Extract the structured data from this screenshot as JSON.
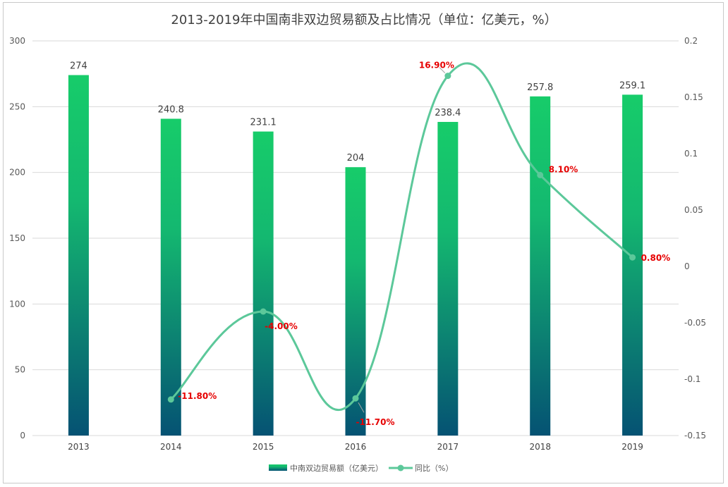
{
  "chart_data": {
    "type": "bar",
    "title": "2013-2019年中国南非双边贸易额及占比情况（单位：亿美元，%）",
    "categories": [
      "2013",
      "2014",
      "2015",
      "2016",
      "2017",
      "2018",
      "2019"
    ],
    "ylim": [
      0,
      300
    ],
    "y_ticks": [
      "0",
      "50",
      "100",
      "150",
      "200",
      "250",
      "300"
    ],
    "y2lim": [
      -0.15,
      0.2
    ],
    "y2_ticks": [
      "-0.15",
      "-0.1",
      "-0.05",
      "0",
      "0.05",
      "0.1",
      "0.15",
      "0.2"
    ],
    "grid": true,
    "legend_position": "bottom",
    "series": [
      {
        "name": "中南双边贸易额（亿美元）",
        "type": "bar",
        "axis": "left",
        "values": [
          274,
          240.8,
          231.1,
          204,
          238.4,
          257.8,
          259.1
        ],
        "labels": [
          "274",
          "240.8",
          "231.1",
          "204",
          "238.4",
          "257.8",
          "259.1"
        ],
        "color_top": "#17cc6a",
        "color_bottom": "#055273"
      },
      {
        "name": "同比（%）",
        "type": "line",
        "axis": "right",
        "x": [
          "2014",
          "2015",
          "2016",
          "2017",
          "2018",
          "2019"
        ],
        "values": [
          -0.118,
          -0.04,
          -0.117,
          0.169,
          0.081,
          0.008
        ],
        "labels": [
          "-11.80%",
          "-4.00%",
          "-11.70%",
          "16.90%",
          "8.10%",
          "0.80%"
        ],
        "color": "#5cc89a",
        "label_color": "#e60000"
      }
    ]
  }
}
